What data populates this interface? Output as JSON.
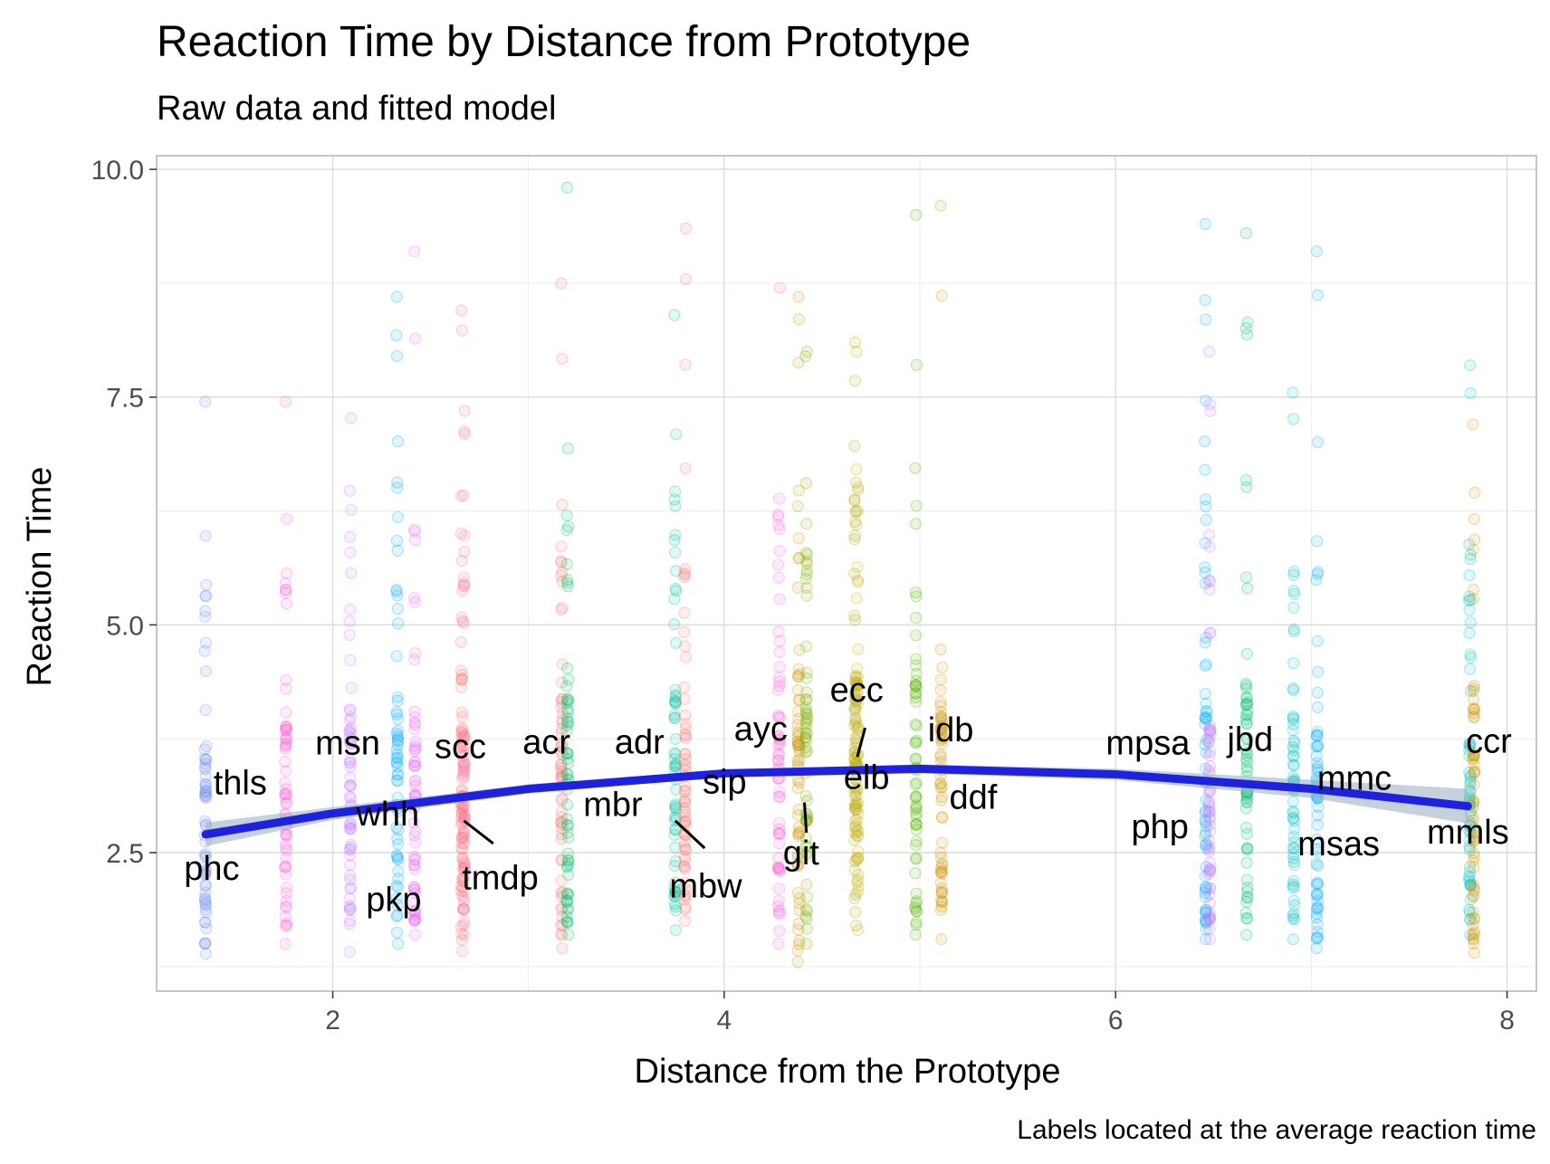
{
  "chart_data": {
    "type": "scatter",
    "title": "Reaction Time by Distance from Prototype",
    "subtitle": "Raw data and fitted model",
    "xlabel": "Distance from the Prototype",
    "ylabel": "Reaction Time",
    "caption": "Labels located at the average reaction time",
    "xlim": [
      1.1,
      8.15
    ],
    "ylim": [
      0.98,
      10.15
    ],
    "x_ticks": [
      2,
      4,
      6,
      8
    ],
    "y_ticks": [
      2.5,
      5.0,
      7.5,
      10.0
    ],
    "x_tick_labels": [
      "2",
      "4",
      "6",
      "8"
    ],
    "y_tick_labels": [
      "2.5",
      "5.0",
      "7.5",
      "10.0"
    ],
    "grid": true,
    "legend": "none",
    "fit": {
      "method": "smooth",
      "color": "#1e22e0",
      "band_color": "#9fb2c4",
      "x": [
        1.35,
        2.0,
        3.0,
        4.0,
        5.0,
        6.0,
        7.0,
        7.8
      ],
      "y": [
        2.7,
        2.93,
        3.2,
        3.37,
        3.42,
        3.36,
        3.2,
        3.01
      ],
      "lower": [
        2.57,
        2.86,
        3.15,
        3.33,
        3.37,
        3.3,
        3.1,
        2.82
      ],
      "upper": [
        2.83,
        3.0,
        3.25,
        3.41,
        3.47,
        3.42,
        3.3,
        3.2
      ]
    },
    "series": [
      {
        "name": "phc",
        "x": 1.35,
        "mean": 2.53,
        "min": 1.39,
        "max": 7.45,
        "color": "#6e8cf5"
      },
      {
        "name": "thls",
        "x": 1.76,
        "mean": 2.9,
        "min": 1.5,
        "max": 7.45,
        "color": "#fb61d7"
      },
      {
        "name": "msn",
        "x": 2.09,
        "mean": 3.18,
        "min": 1.41,
        "max": 7.27,
        "color": "#c77cff"
      },
      {
        "name": "whh",
        "x": 2.33,
        "mean": 2.99,
        "min": 1.5,
        "max": 8.6,
        "color": "#00a9ff"
      },
      {
        "name": "pkp",
        "x": 2.42,
        "mean": 3.1,
        "min": 1.6,
        "max": 9.1,
        "color": "#e76bf3"
      },
      {
        "name": "scc",
        "x": 2.66,
        "mean": 3.0,
        "min": 1.42,
        "max": 8.45,
        "color": "#f8766d"
      },
      {
        "name": "tmdp",
        "x": 2.67,
        "mean": 2.86,
        "min": 1.6,
        "max": 7.35,
        "color": "#ff6c91"
      },
      {
        "name": "acr",
        "x": 3.17,
        "mean": 3.2,
        "min": 1.45,
        "max": 8.75,
        "color": "#f8766d"
      },
      {
        "name": "mbr",
        "x": 3.2,
        "mean": 3.18,
        "min": 1.6,
        "max": 9.8,
        "color": "#00be67"
      },
      {
        "name": "adr",
        "x": 3.75,
        "mean": 3.3,
        "min": 1.65,
        "max": 8.4,
        "color": "#00c19a"
      },
      {
        "name": "mbw",
        "x": 3.8,
        "mean": 2.92,
        "min": 1.75,
        "max": 9.35,
        "color": "#f8766d"
      },
      {
        "name": "ayc",
        "x": 4.28,
        "mean": 3.4,
        "min": 1.5,
        "max": 8.7,
        "color": "#fb61d7"
      },
      {
        "name": "sip",
        "x": 4.38,
        "mean": 3.32,
        "min": 1.3,
        "max": 8.6,
        "color": "#cd9600"
      },
      {
        "name": "git",
        "x": 4.42,
        "mean": 3.1,
        "min": 1.5,
        "max": 8.0,
        "color": "#7cae00"
      },
      {
        "name": "ecc",
        "x": 4.67,
        "mean": 3.5,
        "min": 1.7,
        "max": 8.1,
        "color": "#aba300"
      },
      {
        "name": "elb",
        "x": 4.68,
        "mean": 3.45,
        "min": 1.65,
        "max": 8.0,
        "color": "#c4b000"
      },
      {
        "name": "idb",
        "x": 4.98,
        "mean": 3.4,
        "min": 1.6,
        "max": 9.5,
        "color": "#53b400"
      },
      {
        "name": "ddf",
        "x": 5.11,
        "mean": 3.1,
        "min": 1.55,
        "max": 9.6,
        "color": "#cd9600"
      },
      {
        "name": "mpsa",
        "x": 6.46,
        "mean": 3.35,
        "min": 1.55,
        "max": 9.4,
        "color": "#00b0f6"
      },
      {
        "name": "php",
        "x": 6.48,
        "mean": 2.9,
        "min": 1.55,
        "max": 8.0,
        "color": "#c77cff"
      },
      {
        "name": "jbd",
        "x": 6.67,
        "mean": 3.4,
        "min": 1.6,
        "max": 9.3,
        "color": "#00be67"
      },
      {
        "name": "mmc",
        "x": 6.91,
        "mean": 3.1,
        "min": 1.55,
        "max": 7.55,
        "color": "#00bfc4"
      },
      {
        "name": "msas",
        "x": 7.03,
        "mean": 2.85,
        "min": 1.45,
        "max": 9.1,
        "color": "#00a9ff"
      },
      {
        "name": "mmls",
        "x": 7.81,
        "mean": 2.95,
        "min": 1.6,
        "max": 7.85,
        "color": "#00bfc4"
      },
      {
        "name": "ccr",
        "x": 7.83,
        "mean": 3.4,
        "min": 1.4,
        "max": 7.2,
        "color": "#cd9600"
      }
    ]
  },
  "label_layout": {
    "phc": [
      1.24,
      2.2,
      "start"
    ],
    "thls": [
      1.39,
      3.14,
      "start"
    ],
    "msn": [
      1.91,
      3.58,
      "start"
    ],
    "whh": [
      2.12,
      2.8,
      "start"
    ],
    "pkp": [
      2.17,
      1.86,
      "start"
    ],
    "scc": [
      2.52,
      3.54,
      "start"
    ],
    "tmdp": [
      2.66,
      2.1,
      "start"
    ],
    "acr": [
      2.97,
      3.59,
      "start"
    ],
    "mbr": [
      3.28,
      2.9,
      "start"
    ],
    "adr": [
      3.44,
      3.59,
      "start"
    ],
    "mbw": [
      3.72,
      2.01,
      "start"
    ],
    "ayc": [
      4.05,
      3.73,
      "start"
    ],
    "sip": [
      3.89,
      3.15,
      "start"
    ],
    "git": [
      4.3,
      2.37,
      "start"
    ],
    "ecc": [
      4.54,
      4.16,
      "start"
    ],
    "elb": [
      4.61,
      3.2,
      "start"
    ],
    "idb": [
      5.04,
      3.72,
      "start"
    ],
    "ddf": [
      5.15,
      2.98,
      "start"
    ],
    "mpsa": [
      5.95,
      3.58,
      "start"
    ],
    "php": [
      6.08,
      2.66,
      "start"
    ],
    "jbd": [
      6.57,
      3.62,
      "start"
    ],
    "mmc": [
      7.03,
      3.19,
      "start"
    ],
    "msas": [
      6.93,
      2.47,
      "start"
    ],
    "mmls": [
      7.59,
      2.6,
      "start"
    ],
    "ccr": [
      7.79,
      3.6,
      "start"
    ]
  },
  "leader_lines": [
    {
      "from": [
        2.67,
        2.85
      ],
      "to": [
        2.82,
        2.6
      ]
    },
    {
      "from": [
        3.75,
        2.85
      ],
      "to": [
        3.9,
        2.55
      ]
    },
    {
      "from": [
        4.41,
        3.05
      ],
      "to": [
        4.42,
        2.72
      ]
    },
    {
      "from": [
        4.72,
        3.87
      ],
      "to": [
        4.68,
        3.55
      ]
    }
  ]
}
